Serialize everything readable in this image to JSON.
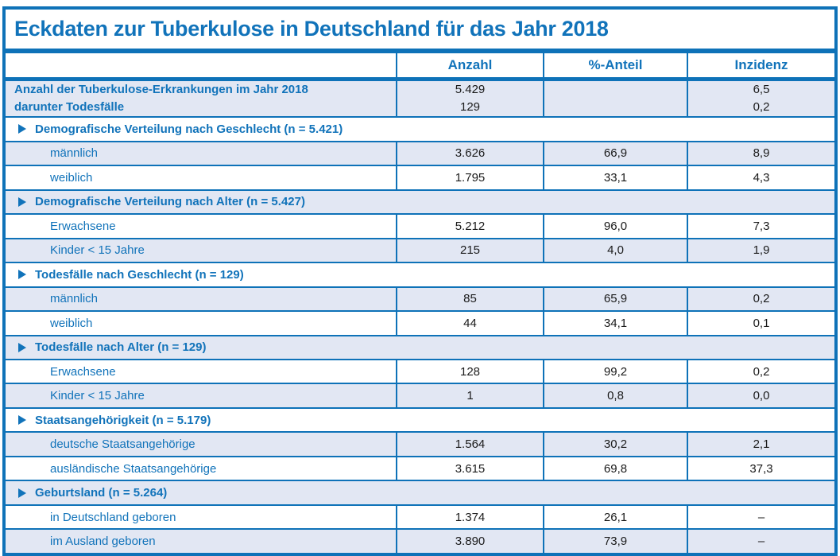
{
  "title": "Eckdaten zur Tuberkulose in Deutschland für das Jahr 2018",
  "columns": [
    "",
    "Anzahl",
    "%-Anteil",
    "Inzidenz"
  ],
  "colors": {
    "accent_blue": "#0e72b8",
    "text_blue": "#1173ba",
    "shaded_row_background": "#e2e7f3",
    "number_text": "#1a1a1a"
  },
  "rows": [
    {
      "type": "summary",
      "labels": [
        "Anzahl der Tuberkulose-Erkrankungen im Jahr 2018",
        "darunter Todesfälle"
      ],
      "anzahl": [
        "5.429",
        "129"
      ],
      "anteil": [
        "",
        ""
      ],
      "inzidenz": [
        "6,5",
        "0,2"
      ]
    },
    {
      "type": "section",
      "label": "Demografische Verteilung nach Geschlecht (n = 5.421)"
    },
    {
      "type": "data",
      "label": "männlich",
      "anzahl": "3.626",
      "anteil": "66,9",
      "inzidenz": "8,9"
    },
    {
      "type": "data",
      "label": "weiblich",
      "anzahl": "1.795",
      "anteil": "33,1",
      "inzidenz": "4,3"
    },
    {
      "type": "section",
      "label": "Demografische Verteilung nach Alter (n = 5.427)"
    },
    {
      "type": "data",
      "label": "Erwachsene",
      "anzahl": "5.212",
      "anteil": "96,0",
      "inzidenz": "7,3"
    },
    {
      "type": "data",
      "label": "Kinder < 15 Jahre",
      "anzahl": "215",
      "anteil": "4,0",
      "inzidenz": "1,9"
    },
    {
      "type": "section",
      "label": "Todesfälle nach Geschlecht (n = 129)"
    },
    {
      "type": "data",
      "label": "männlich",
      "anzahl": "85",
      "anteil": "65,9",
      "inzidenz": "0,2"
    },
    {
      "type": "data",
      "label": "weiblich",
      "anzahl": "44",
      "anteil": "34,1",
      "inzidenz": "0,1"
    },
    {
      "type": "section",
      "label": "Todesfälle nach Alter (n = 129)"
    },
    {
      "type": "data",
      "label": "Erwachsene",
      "anzahl": "128",
      "anteil": "99,2",
      "inzidenz": "0,2"
    },
    {
      "type": "data",
      "label": "Kinder < 15 Jahre",
      "anzahl": "1",
      "anteil": "0,8",
      "inzidenz": "0,0"
    },
    {
      "type": "section",
      "label": "Staatsangehörigkeit (n = 5.179)"
    },
    {
      "type": "data",
      "label": "deutsche Staatsangehörige",
      "anzahl": "1.564",
      "anteil": "30,2",
      "inzidenz": "2,1"
    },
    {
      "type": "data",
      "label": "ausländische Staatsangehörige",
      "anzahl": "3.615",
      "anteil": "69,8",
      "inzidenz": "37,3"
    },
    {
      "type": "section",
      "label": "Geburtsland (n = 5.264)"
    },
    {
      "type": "data",
      "label": "in Deutschland geboren",
      "anzahl": "1.374",
      "anteil": "26,1",
      "inzidenz": "–"
    },
    {
      "type": "data",
      "label": "im Ausland geboren",
      "anzahl": "3.890",
      "anteil": "73,9",
      "inzidenz": "–"
    }
  ]
}
